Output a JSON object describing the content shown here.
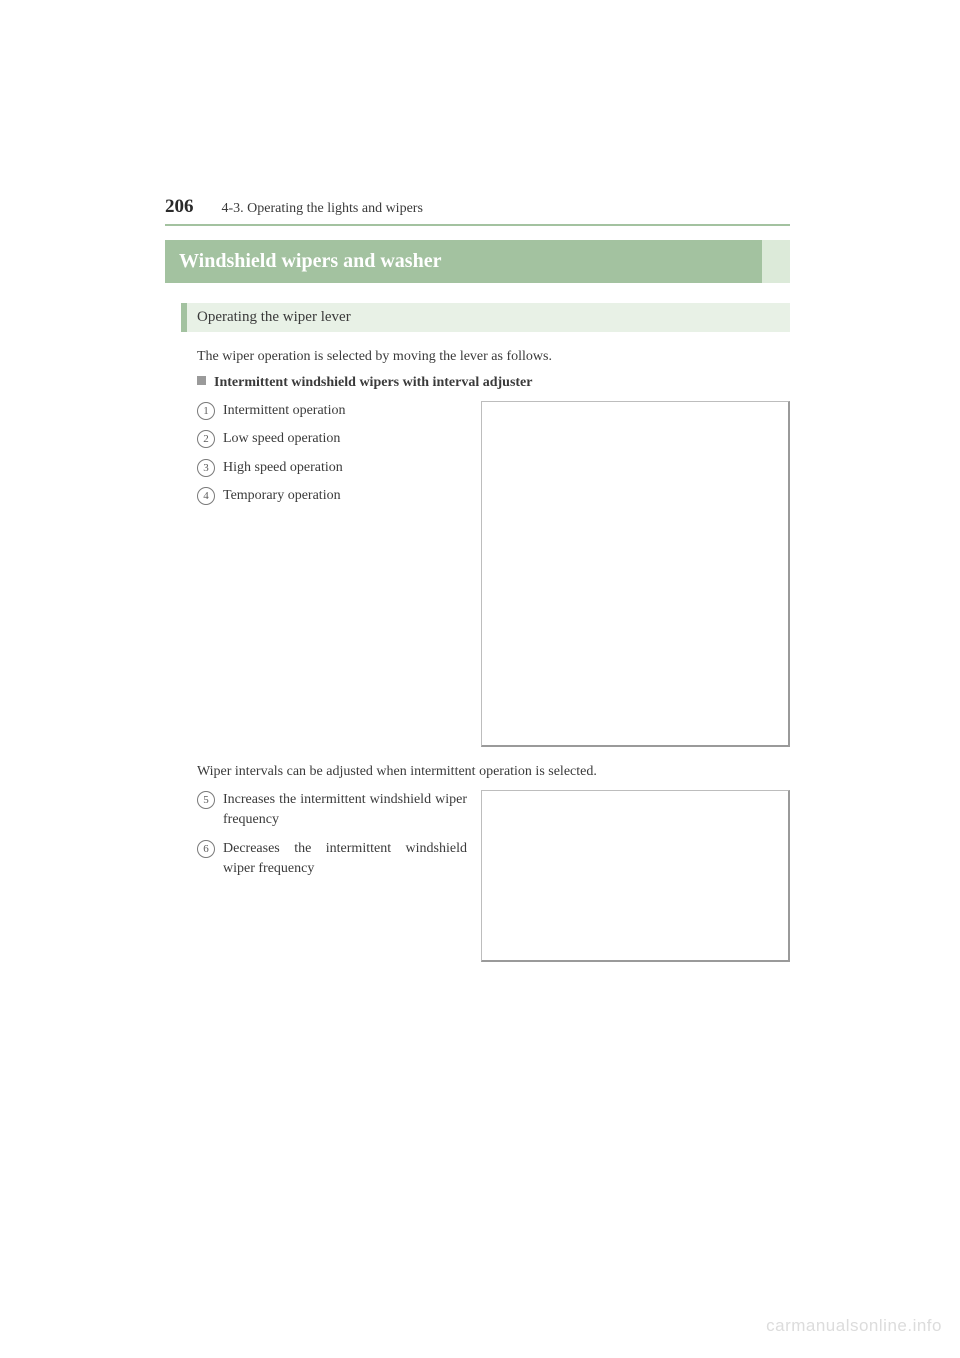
{
  "page_number": "206",
  "section_path": "4-3. Operating the lights and wipers",
  "title": "Windshield wipers and washer",
  "subsection": "Operating the wiper lever",
  "intro": "The wiper operation is selected by moving the lever as follows.",
  "sub_heading": "Intermittent windshield wipers with interval adjuster",
  "list1": [
    {
      "n": "1",
      "t": "Intermittent operation"
    },
    {
      "n": "2",
      "t": "Low speed operation"
    },
    {
      "n": "3",
      "t": "High speed operation"
    },
    {
      "n": "4",
      "t": "Temporary operation"
    }
  ],
  "mid_text": "Wiper intervals can be adjusted when intermittent operation is selected.",
  "list2": [
    {
      "n": "5",
      "t": "Increases the intermittent wind­shield wiper frequency"
    },
    {
      "n": "6",
      "t": "Decreases the intermittent wind­shield wiper frequency"
    }
  ],
  "watermark": "carmanualsonline.info"
}
